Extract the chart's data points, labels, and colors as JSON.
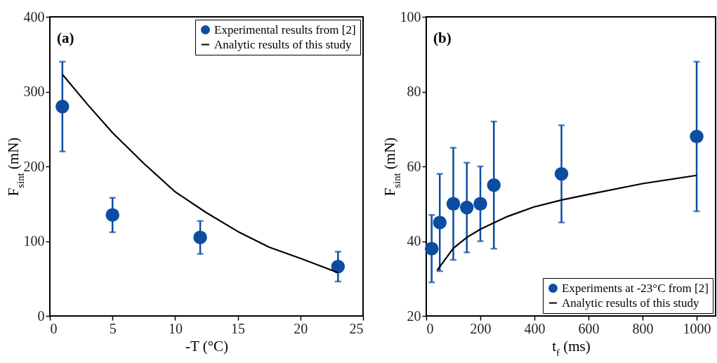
{
  "chart_data": [
    {
      "type": "scatter",
      "annotations": [
        "(a)"
      ],
      "xlabel": "-T (°C)",
      "ylabel": "F$_{sint}$ (mN)",
      "xlim": [
        0,
        25
      ],
      "ylim": [
        0,
        400
      ],
      "xticks": [
        0,
        5,
        10,
        15,
        20,
        25
      ],
      "yticks": [
        0,
        100,
        200,
        300,
        400
      ],
      "grid": false,
      "legend": "top right",
      "series": [
        {
          "name": "Experimental results from [2]",
          "marker": "circle",
          "color": "#0c4da2",
          "x": [
            1,
            5,
            12,
            23
          ],
          "values": [
            280,
            135,
            105,
            66
          ],
          "errors": [
            [
              220,
              340
            ],
            [
              112,
              158
            ],
            [
              83,
              127
            ],
            [
              46,
              86
            ]
          ]
        },
        {
          "name": "Analytic results of this study",
          "type": "line",
          "color": "#000000",
          "x": [
            1,
            3,
            5,
            7.5,
            10,
            12.5,
            15,
            17.5,
            20,
            23
          ],
          "values": [
            323,
            283,
            245,
            204,
            166,
            138,
            113,
            92,
            77,
            58
          ]
        }
      ]
    },
    {
      "type": "scatter",
      "annotations": [
        "(b)"
      ],
      "xlabel": "t$_{f}$ (ms)",
      "ylabel": "F$_{sint}$ (mN)",
      "xlim": [
        0,
        1070
      ],
      "ylim": [
        20,
        100
      ],
      "xticks": [
        0,
        200,
        400,
        600,
        800,
        1000
      ],
      "yticks": [
        20,
        40,
        60,
        80,
        100
      ],
      "grid": false,
      "legend": "bottom right",
      "series": [
        {
          "name": "Experiments at -23°C from [2]",
          "marker": "circle",
          "color": "#0c4da2",
          "x": [
            20,
            50,
            100,
            150,
            200,
            250,
            500,
            1000
          ],
          "values": [
            38,
            45,
            50,
            49,
            50,
            55,
            58,
            68
          ],
          "errors": [
            [
              29,
              47
            ],
            [
              32,
              58
            ],
            [
              35,
              65
            ],
            [
              37,
              61
            ],
            [
              40,
              60
            ],
            [
              38,
              72
            ],
            [
              45,
              71
            ],
            [
              48,
              88
            ]
          ]
        },
        {
          "name": "Analytic results of this study",
          "type": "line",
          "color": "#000000",
          "x": [
            40,
            100,
            150,
            200,
            300,
            400,
            500,
            600,
            800,
            1000
          ],
          "values": [
            32.2,
            38.1,
            41,
            43.2,
            46.6,
            49.2,
            51,
            52.5,
            55.4,
            57.6
          ]
        }
      ]
    }
  ]
}
